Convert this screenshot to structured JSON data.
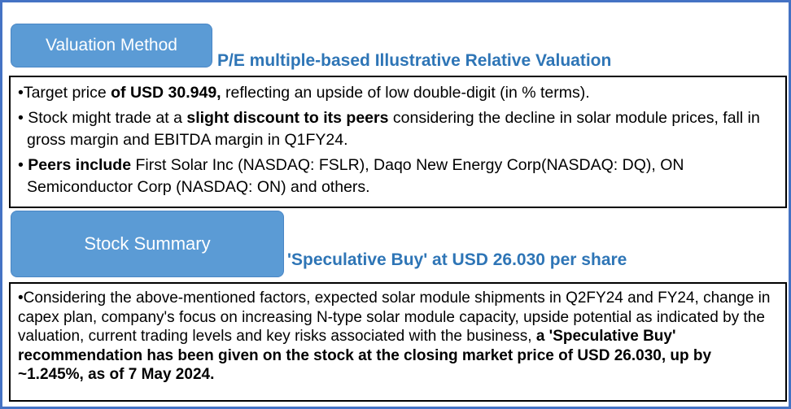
{
  "colors": {
    "tab_fill": "#5B9BD5",
    "title_text": "#2E75B6",
    "outer_border": "#4472C4",
    "box_border": "#000000",
    "body_text": "#000000"
  },
  "valuation": {
    "tab_label": "Valuation Method",
    "title": "P/E multiple-based Illustrative Relative Valuation",
    "bullets": [
      [
        {
          "t": "•Target price ",
          "b": false
        },
        {
          "t": "of USD 30.949,",
          "b": true
        },
        {
          "t": " reflecting an upside of low double-digit (in % terms).",
          "b": false
        }
      ],
      [
        {
          "t": "• Stock might trade at a ",
          "b": false
        },
        {
          "t": "slight discount to its peers",
          "b": true
        },
        {
          "t": " considering the decline in solar module prices, fall in gross margin and EBITDA margin in Q1FY24.",
          "b": false
        }
      ],
      [
        {
          "t": "• ",
          "b": false
        },
        {
          "t": "Peers include",
          "b": true
        },
        {
          "t": " First Solar Inc (NASDAQ: FSLR), Daqo New Energy Corp(NASDAQ: DQ), ON Semiconductor Corp (NASDAQ: ON) and others.",
          "b": false
        }
      ]
    ]
  },
  "summary": {
    "tab_label": "Stock Summary",
    "title": "'Speculative Buy' at USD 26.030 per share",
    "bullets": [
      [
        {
          "t": "•Considering the above-mentioned factors, expected solar module shipments in Q2FY24 and FY24, change in capex plan, company's focus on increasing N-type solar module capacity, upside potential as indicated by the valuation, current trading levels and key risks associated with the business, ",
          "b": false
        },
        {
          "t": "a 'Speculative Buy' recommendation has been given on the stock at the closing market price of USD 26.030, up by ~1.245%, as of 7 May 2024.",
          "b": true
        }
      ]
    ]
  }
}
